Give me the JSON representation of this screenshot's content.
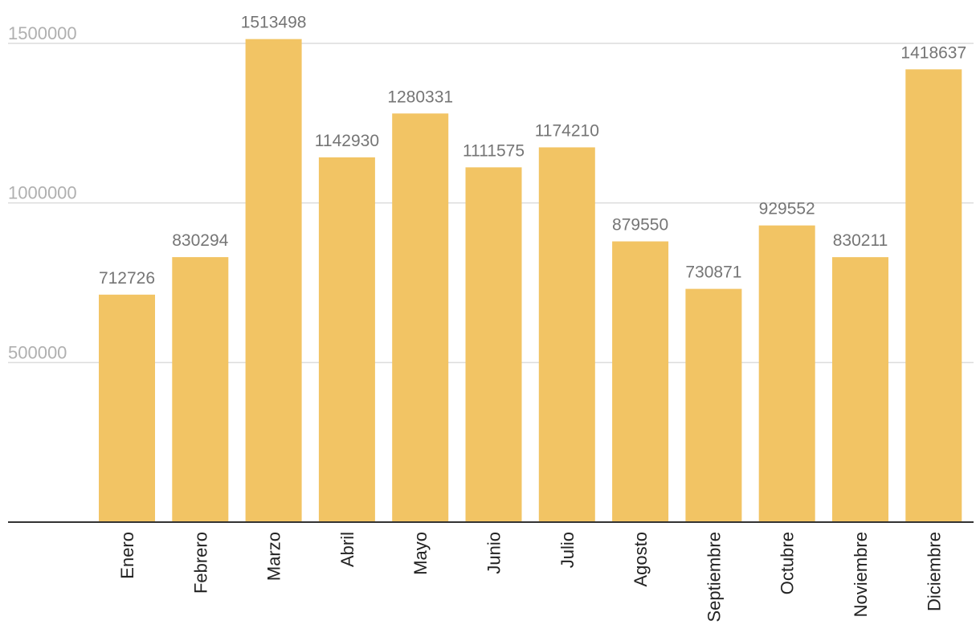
{
  "chart_data": {
    "type": "bar",
    "categories": [
      "Enero",
      "Febrero",
      "Marzo",
      "Abril",
      "Mayo",
      "Junio",
      "Julio",
      "Agosto",
      "Septiembre",
      "Octubre",
      "Noviembre",
      "Diciembre"
    ],
    "values": [
      712726,
      830294,
      1513498,
      1142930,
      1280331,
      1111575,
      1174210,
      879550,
      730871,
      929552,
      830211,
      1418637
    ],
    "data_labels": [
      "712726",
      "830294",
      "1513498",
      "1142930",
      "1280331",
      "1111575",
      "1174210",
      "879550",
      "730871",
      "929552",
      "830211",
      "1418637"
    ],
    "yticks": [
      500000,
      1000000,
      1500000
    ],
    "ytick_labels": [
      "500000",
      "1000000",
      "1500000"
    ],
    "ylim": [
      0,
      1500000
    ],
    "grid": true,
    "legend": "none",
    "title": "",
    "xlabel": "",
    "ylabel": "",
    "colors": {
      "bar": "#f2c464",
      "grid": "#dcdcdc",
      "baseline": "#333333",
      "value_label": "#757575",
      "ytick_label": "#b0b0b0",
      "xtick_label": "#222222"
    }
  }
}
